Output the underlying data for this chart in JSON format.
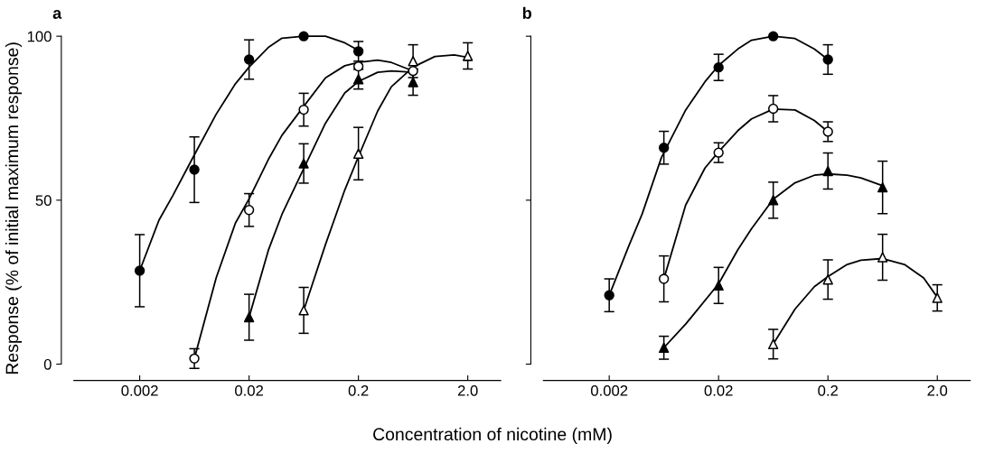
{
  "chart_data": [
    {
      "type": "scatter",
      "title": "a",
      "ylabel": "Response (% of initial maximum response)",
      "xlabel": "Concentration of nicotine (mM)",
      "log": "x",
      "xlim": [
        0.0005,
        4
      ],
      "xticks": [
        0.002,
        0.02,
        0.2,
        {
          "value": 2.0,
          "label": "2.0"
        }
      ],
      "ylim": [
        -5,
        100
      ],
      "yticks": [
        0,
        50,
        100
      ],
      "grid": false,
      "legend": false,
      "series": [
        {
          "type": "line",
          "marker": "none",
          "color": "#000000",
          "x": [
            0.002,
            0.003,
            0.004,
            0.006,
            0.01,
            0.015,
            0.02,
            0.03,
            0.04,
            0.0632,
            0.1,
            0.15,
            0.2
          ],
          "values": [
            28.5,
            43.9,
            51.3,
            62.4,
            76.2,
            85.5,
            90.6,
            96.6,
            99.4,
            100,
            100,
            98.0,
            95.7
          ]
        },
        {
          "type": "line",
          "marker": "none",
          "color": "#000000",
          "x": [
            0.00632,
            0.01,
            0.015,
            0.02,
            0.03,
            0.04,
            0.0632,
            0.1,
            0.15,
            0.2,
            0.3,
            0.4,
            0.632
          ],
          "values": [
            1.7,
            26.3,
            43.0,
            50.4,
            62.4,
            69.8,
            78.6,
            87.3,
            91.0,
            92.0,
            92.7,
            92.0,
            89.4
          ]
        },
        {
          "type": "line",
          "marker": "none",
          "color": "#000000",
          "x": [
            0.02,
            0.03,
            0.04,
            0.0632,
            0.1,
            0.15,
            0.2,
            0.3,
            0.4,
            0.632
          ],
          "values": [
            14.3,
            34.7,
            45.7,
            59.6,
            73.5,
            82.7,
            86.2,
            89.0,
            89.4,
            89.0
          ]
        },
        {
          "type": "line",
          "marker": "none",
          "color": "#000000",
          "x": [
            0.0632,
            0.1,
            0.15,
            0.2,
            0.3,
            0.4,
            0.632,
            1.0,
            1.5,
            2.0
          ],
          "values": [
            16.4,
            36.5,
            53.1,
            63.3,
            77.2,
            84.6,
            90.6,
            93.8,
            94.3,
            93.6
          ]
        },
        {
          "color": "#000000",
          "marker": "circle",
          "x": [
            0.002,
            0.00632,
            0.02,
            0.0632,
            0.2
          ],
          "values": [
            28.5,
            59.3,
            92.9,
            100,
            95.4
          ],
          "errors": [
            11,
            10,
            6,
            null,
            3
          ]
        },
        {
          "color": "#ffffff",
          "marker": "circle",
          "x": [
            0.00632,
            0.02,
            0.0632,
            0.2,
            0.632
          ],
          "values": [
            1.7,
            47.0,
            77.6,
            90.8,
            89.4
          ],
          "errors": [
            3,
            5,
            5,
            null,
            null
          ]
        },
        {
          "color": "#000000",
          "marker": "triangle",
          "x": [
            0.02,
            0.0632,
            0.2,
            0.632
          ],
          "values": [
            14.3,
            61.2,
            86.9,
            86.0
          ],
          "errors": [
            7,
            6,
            3,
            4
          ]
        },
        {
          "color": "#ffffff",
          "marker": "triangle",
          "x": [
            0.0632,
            0.2,
            0.632,
            2.0
          ],
          "values": [
            16.4,
            64.2,
            92.4,
            94.0
          ],
          "errors": [
            7,
            8,
            5,
            4
          ]
        }
      ]
    },
    {
      "type": "scatter",
      "title": "b",
      "log": "x",
      "xlim": [
        0.0005,
        4
      ],
      "xticks": [
        0.002,
        0.02,
        0.2,
        {
          "value": 2.0,
          "label": "2.0"
        }
      ],
      "ylim": [
        -5,
        100
      ],
      "yticks": [
        {
          "value": 0,
          "label": null
        },
        {
          "value": 50,
          "label": null
        },
        {
          "value": 100,
          "label": null
        }
      ],
      "tick_labels": "x",
      "grid": false,
      "legend": false,
      "series": [
        {
          "type": "line",
          "marker": "none",
          "color": "#000000",
          "x": [
            0.002,
            0.003,
            0.004,
            0.006,
            0.01,
            0.015,
            0.02,
            0.03,
            0.04,
            0.0632,
            0.1,
            0.15,
            0.2
          ],
          "values": [
            21.0,
            35.8,
            45.8,
            63.0,
            77.5,
            86.1,
            91.1,
            96.1,
            98.8,
            100,
            99.3,
            96.1,
            92.9
          ]
        },
        {
          "type": "line",
          "marker": "none",
          "color": "#000000",
          "x": [
            0.00632,
            0.01,
            0.015,
            0.02,
            0.03,
            0.04,
            0.0632,
            0.1,
            0.15,
            0.2
          ],
          "values": [
            26.0,
            48.5,
            59.8,
            64.8,
            71.2,
            74.8,
            77.8,
            77.5,
            74.3,
            70.9
          ]
        },
        {
          "type": "line",
          "marker": "none",
          "color": "#000000",
          "x": [
            0.00632,
            0.01,
            0.02,
            0.03,
            0.04,
            0.0632,
            0.1,
            0.15,
            0.2,
            0.3,
            0.4,
            0.632
          ],
          "values": [
            5.0,
            12.2,
            24.5,
            34.9,
            41.3,
            50.3,
            55.3,
            57.6,
            58.0,
            57.6,
            56.8,
            54.4
          ]
        },
        {
          "type": "line",
          "marker": "none",
          "color": "#000000",
          "x": [
            0.0632,
            0.1,
            0.15,
            0.2,
            0.3,
            0.4,
            0.632,
            1.0,
            1.5,
            2.0
          ],
          "values": [
            6.1,
            16.8,
            23.6,
            26.7,
            30.4,
            31.7,
            32.2,
            30.4,
            26.3,
            20.4
          ]
        },
        {
          "color": "#000000",
          "marker": "circle",
          "x": [
            0.002,
            0.00632,
            0.02,
            0.0632,
            0.2
          ],
          "values": [
            21.0,
            66.0,
            90.5,
            100,
            92.9
          ],
          "errors": [
            5,
            5,
            4,
            null,
            4.5
          ]
        },
        {
          "color": "#ffffff",
          "marker": "circle",
          "x": [
            0.00632,
            0.02,
            0.0632,
            0.2
          ],
          "values": [
            26.0,
            64.5,
            77.9,
            70.9
          ],
          "errors": [
            7,
            3,
            4,
            3
          ]
        },
        {
          "color": "#000000",
          "marker": "triangle",
          "x": [
            0.00632,
            0.02,
            0.0632,
            0.2,
            0.632
          ],
          "values": [
            5.0,
            24.0,
            50.0,
            58.9,
            53.9
          ],
          "errors": [
            3.5,
            5.5,
            5.5,
            5.5,
            8
          ]
        },
        {
          "color": "#ffffff",
          "marker": "triangle",
          "x": [
            0.0632,
            0.2,
            0.632,
            2.0
          ],
          "values": [
            6.1,
            25.8,
            32.6,
            20.2
          ],
          "errors": [
            4.5,
            6,
            7,
            4
          ]
        }
      ]
    }
  ]
}
